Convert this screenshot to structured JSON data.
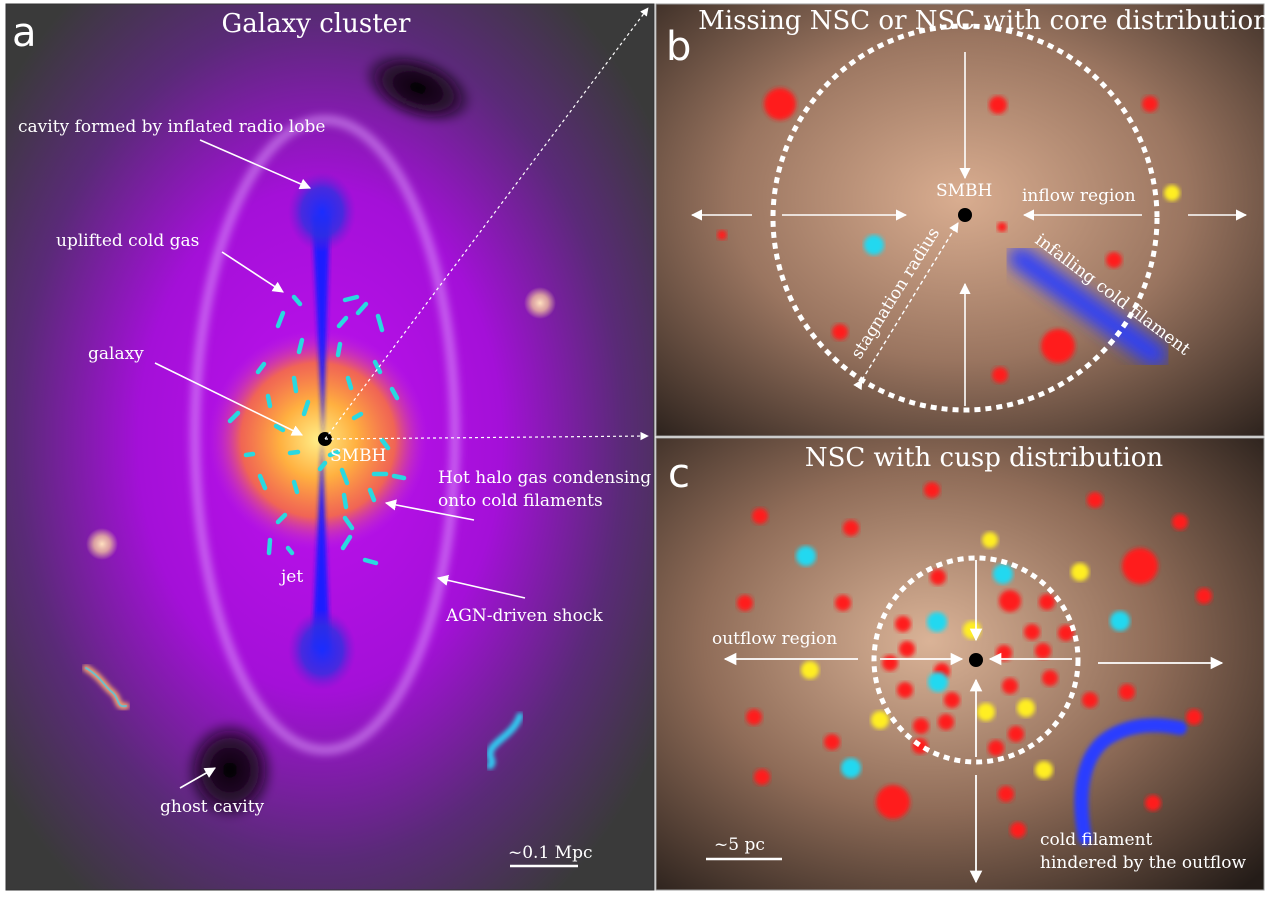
{
  "panel_a": {
    "label": "a",
    "title": "Galaxy cluster",
    "annotations": {
      "cavity": "cavity formed by inflated radio lobe",
      "uplifted": "uplifted cold gas",
      "galaxy": "galaxy",
      "smbh": "SMBH",
      "hot_halo_1": "Hot halo gas condensing",
      "hot_halo_2": "onto cold filaments",
      "jet": "jet",
      "shock": "AGN-driven shock",
      "ghost": "ghost cavity"
    },
    "scale": "~0.1 Mpc"
  },
  "panel_b": {
    "label": "b",
    "title": "Missing NSC or NSC with core distribution",
    "annotations": {
      "smbh": "SMBH",
      "inflow": "inflow region",
      "stagnation": "stagnation radius",
      "infalling": "infalling cold filament"
    }
  },
  "panel_c": {
    "label": "c",
    "title": "NSC with cusp distribution",
    "annotations": {
      "outflow": "outflow region",
      "filament_1": "cold filament",
      "filament_2": "hindered by the outflow"
    },
    "scale": "~5 pc"
  },
  "colors": {
    "red_star": "#ff1a1a",
    "cyan_star": "#22d8f0",
    "yellow_star": "#ffee22",
    "cold_gas": "#2a3cff",
    "purple_halo": "#b512e6"
  }
}
